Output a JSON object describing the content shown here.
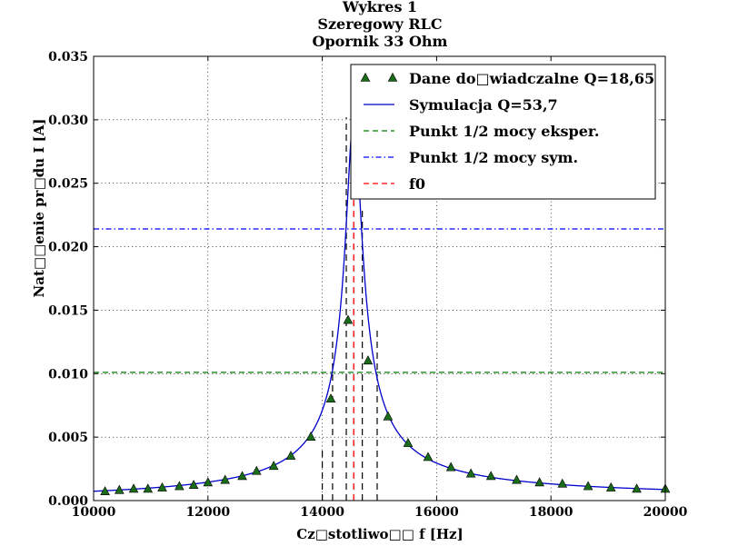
{
  "chart_data": {
    "type": "scatter",
    "title_lines": [
      "Wykres 1",
      "Szeregowy RLC",
      "Opornik 33 Ohm"
    ],
    "xlabel": "Cz□stotliwo□□ f [Hz]",
    "ylabel": "Nat□□enie pr□du I [A]",
    "xlim": [
      10000,
      20000
    ],
    "ylim": [
      0,
      0.035
    ],
    "xticks": [
      10000,
      12000,
      14000,
      16000,
      18000,
      20000
    ],
    "xtick_labels": [
      "10000",
      "12000",
      "14000",
      "16000",
      "18000",
      "20000"
    ],
    "yticks": [
      0,
      0.005,
      0.01,
      0.015,
      0.02,
      0.025,
      0.03,
      0.035
    ],
    "ytick_labels": [
      "0.000",
      "0.005",
      "0.010",
      "0.015",
      "0.020",
      "0.025",
      "0.030",
      "0.035"
    ],
    "grid": true,
    "legend_position": "top-right",
    "series": [
      {
        "name": "Dane do□wiadczalne Q=18,65",
        "kind": "markers",
        "marker": "triangle",
        "color": "#1a6b1a",
        "points": [
          [
            10200,
            0.0007
          ],
          [
            10450,
            0.0008
          ],
          [
            10700,
            0.0009
          ],
          [
            10950,
            0.0009
          ],
          [
            11200,
            0.001
          ],
          [
            11500,
            0.0011
          ],
          [
            11750,
            0.0012
          ],
          [
            12000,
            0.0014
          ],
          [
            12300,
            0.0016
          ],
          [
            12600,
            0.0019
          ],
          [
            12850,
            0.0023
          ],
          [
            13150,
            0.0027
          ],
          [
            13450,
            0.0035
          ],
          [
            13800,
            0.005
          ],
          [
            14150,
            0.008
          ],
          [
            14450,
            0.0142
          ],
          [
            14800,
            0.011
          ],
          [
            15150,
            0.0066
          ],
          [
            15500,
            0.0045
          ],
          [
            15850,
            0.0034
          ],
          [
            16250,
            0.0026
          ],
          [
            16600,
            0.0021
          ],
          [
            16950,
            0.0019
          ],
          [
            17400,
            0.0016
          ],
          [
            17800,
            0.0014
          ],
          [
            18200,
            0.0013
          ],
          [
            18650,
            0.0011
          ],
          [
            19050,
            0.001
          ],
          [
            19500,
            0.0009
          ],
          [
            20000,
            0.0009
          ]
        ]
      },
      {
        "name": "Symulacja Q=53,7",
        "kind": "line",
        "color": "#0000cc",
        "peak_current": 0.0303,
        "resonant_frequency": 14550,
        "quality_factor": 53.7
      },
      {
        "name": "Punkt 1/2 mocy eksper.",
        "kind": "hline",
        "style": "dashed",
        "color": "#007f00",
        "y": 0.0101
      },
      {
        "name": "Punkt 1/2 mocy sym.",
        "kind": "hline",
        "style": "dashdot",
        "color": "#0000ff",
        "y": 0.0214
      },
      {
        "name": "f0",
        "kind": "vline",
        "style": "dashed",
        "color": "#ff0000",
        "x": 14550,
        "y_range": [
          0,
          0.029
        ]
      }
    ],
    "black_vertical_markers": [
      {
        "x": 14000,
        "y_range": [
          0,
          0.0043
        ]
      },
      {
        "x": 14180,
        "y_range": [
          0,
          0.0136
        ]
      },
      {
        "x": 14420,
        "y_range": [
          0,
          0.0302
        ]
      },
      {
        "x": 14700,
        "y_range": [
          0,
          0.0232
        ]
      },
      {
        "x": 14960,
        "y_range": [
          0,
          0.0137
        ]
      }
    ]
  }
}
